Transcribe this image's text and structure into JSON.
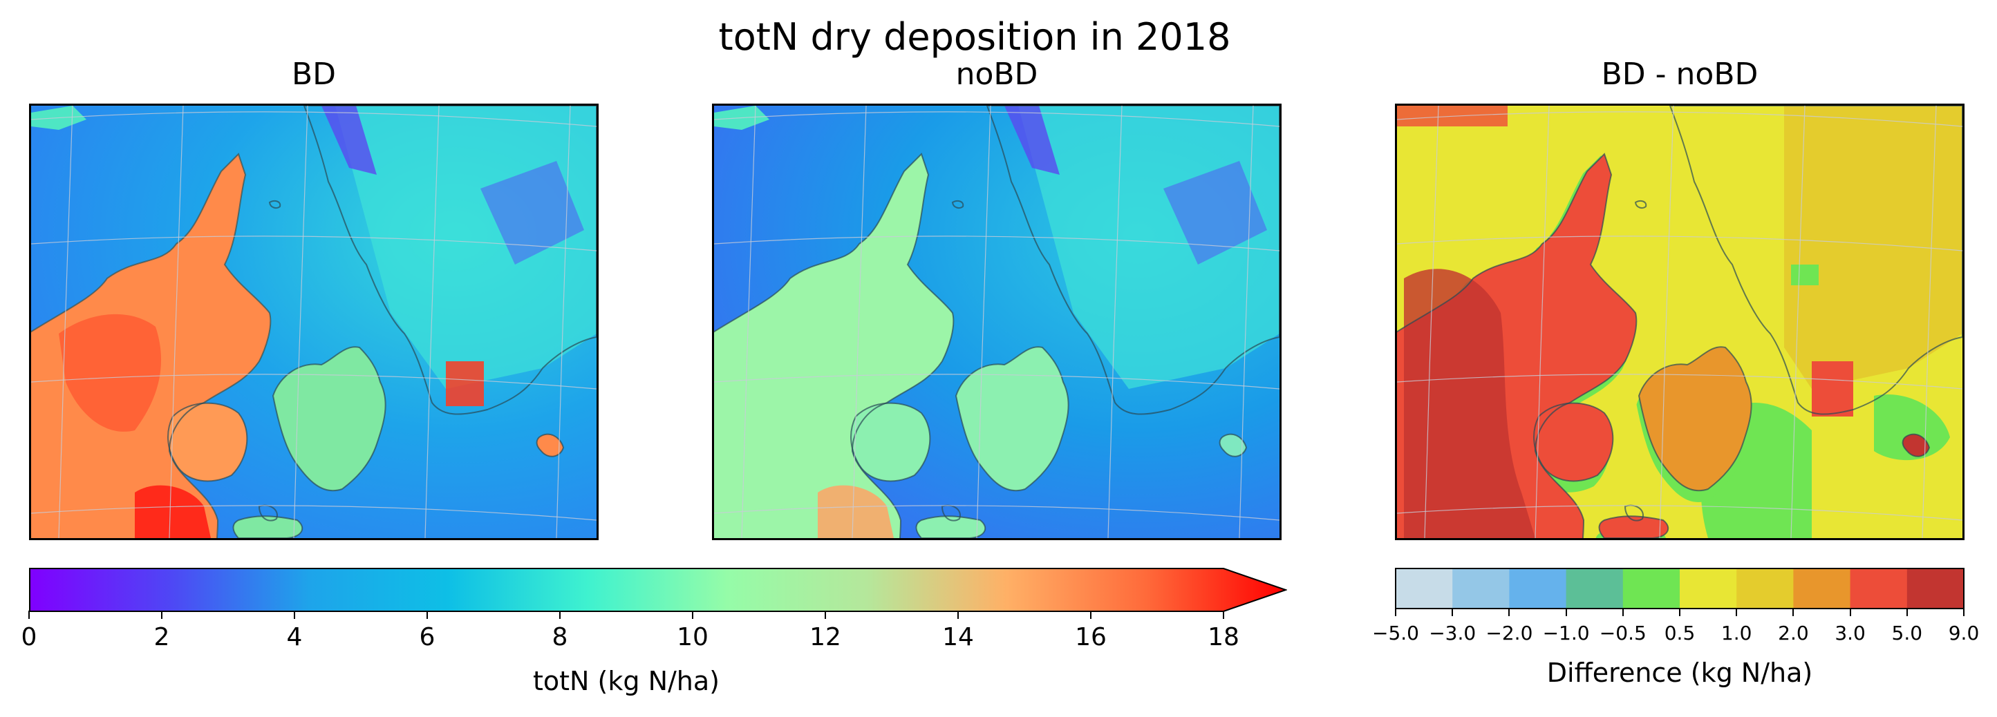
{
  "figure": {
    "title": "totN dry deposition in 2018"
  },
  "panels": [
    {
      "title": "BD",
      "colormap": "rainbow",
      "land_level": "high"
    },
    {
      "title": "noBD",
      "colormap": "rainbow",
      "land_level": "medium"
    },
    {
      "title": "BD - noBD",
      "colormap": "difference",
      "land_level": "positive"
    }
  ],
  "colorbar_main": {
    "label": "totN (kg N/ha)",
    "ticks": [
      "0",
      "2",
      "4",
      "6",
      "8",
      "10",
      "12",
      "14",
      "16",
      "18"
    ],
    "min": 0,
    "max": 18,
    "extend": "max",
    "colors": [
      "#8000ff",
      "#4f46f5",
      "#1ea4ea",
      "#0ebfe6",
      "#3ff2cf",
      "#95fca8",
      "#b5e79b",
      "#ffb066",
      "#ff6a3a",
      "#ff0000"
    ]
  },
  "colorbar_diff": {
    "label": "Difference (kg N/ha)",
    "ticks": [
      "−5.0",
      "−3.0",
      "−2.0",
      "−1.0",
      "−0.5",
      "0.5",
      "1.0",
      "2.0",
      "3.0",
      "5.0",
      "9.0"
    ],
    "colors": [
      "#c7dce8",
      "#94c7e7",
      "#65b2ec",
      "#5cbf97",
      "#6fe553",
      "#e8e634",
      "#e4cc2d",
      "#e8962c",
      "#ed4d39",
      "#c23530"
    ]
  }
}
